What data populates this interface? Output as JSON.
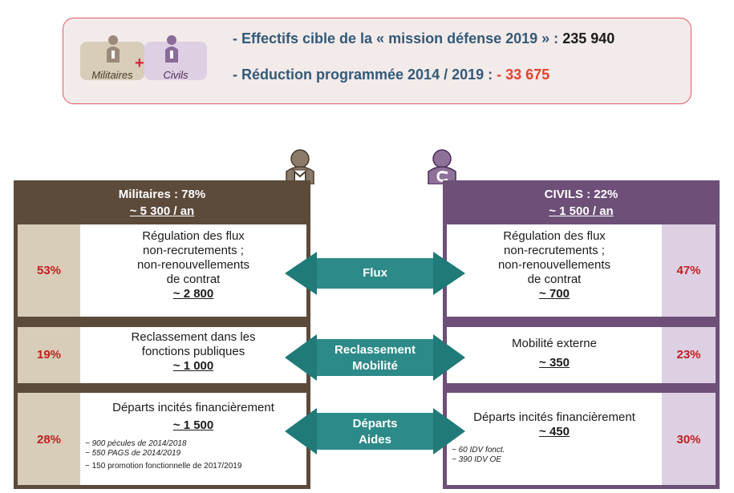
{
  "summary": {
    "tag_military": "Militaires",
    "tag_civil": "Civils",
    "plus": "+",
    "line1_text": "- Effectifs cible de la « mission défense 2019 » :",
    "line1_value": "235 940",
    "line2_text": "- Réduction programmée 2014 / 2019 :",
    "line2_value": "- 33 675"
  },
  "military": {
    "title": "Militaires : 78%",
    "per_year": "~ 5 300 / an",
    "rows": [
      {
        "pct": "53%",
        "lines": [
          "Régulation des flux",
          "non-recrutements ;",
          "non-renouvellements",
          "de contrat"
        ],
        "value": "~ 2 800"
      },
      {
        "pct": "19%",
        "lines": [
          "Reclassement dans les",
          "fonctions publiques"
        ],
        "value": "~ 1 000"
      },
      {
        "pct": "28%",
        "lines": [
          "Départs incités financièrement"
        ],
        "value": "~ 1 500",
        "notes": [
          "~ 900 pécules de 2014/2018",
          "~ 550 PAGS de 2014/2019",
          "~ 150 promotion fonctionnelle de 2017/2019"
        ]
      }
    ]
  },
  "civil": {
    "title": "CIVILS : 22%",
    "per_year": "~ 1 500 / an",
    "rows": [
      {
        "pct": "47%",
        "lines": [
          "Régulation des flux",
          "non-recrutements ;",
          "non-renouvellements",
          "de contrat"
        ],
        "value": "~ 700"
      },
      {
        "pct": "23%",
        "lines": [
          "Mobilité externe"
        ],
        "value": "~ 350"
      },
      {
        "pct": "30%",
        "lines": [
          "Départs incités financièrement"
        ],
        "value": "~ 450",
        "notes": [
          "~ 60 IDV fonct.",
          "~ 390 IDV OE"
        ]
      }
    ]
  },
  "arrows": [
    {
      "lines": [
        "Flux"
      ]
    },
    {
      "lines": [
        "Reclassement",
        "Mobilité"
      ]
    },
    {
      "lines": [
        "Départs",
        "Aides"
      ]
    }
  ],
  "colors": {
    "military": "#5c4a3a",
    "civil": "#6d4f78",
    "arrow": "#1f7a78",
    "accent_red": "#c0201f"
  }
}
